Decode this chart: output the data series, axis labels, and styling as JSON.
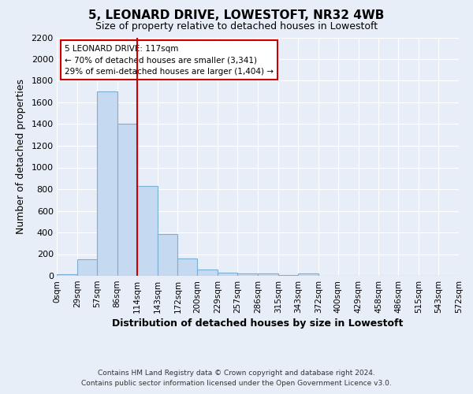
{
  "title": "5, LEONARD DRIVE, LOWESTOFT, NR32 4WB",
  "subtitle": "Size of property relative to detached houses in Lowestoft",
  "xlabel": "Distribution of detached houses by size in Lowestoft",
  "ylabel": "Number of detached properties",
  "bar_color": "#c5d9f0",
  "bar_edge_color": "#7bafd4",
  "background_color": "#e8eef8",
  "grid_color": "#ffffff",
  "bin_edges": [
    0,
    29,
    57,
    86,
    114,
    143,
    172,
    200,
    229,
    257,
    286,
    315,
    343,
    372,
    400,
    429,
    458,
    486,
    515,
    543,
    572
  ],
  "bin_labels": [
    "0sqm",
    "29sqm",
    "57sqm",
    "86sqm",
    "114sqm",
    "143sqm",
    "172sqm",
    "200sqm",
    "229sqm",
    "257sqm",
    "286sqm",
    "315sqm",
    "343sqm",
    "372sqm",
    "400sqm",
    "429sqm",
    "458sqm",
    "486sqm",
    "515sqm",
    "543sqm",
    "572sqm"
  ],
  "bar_heights": [
    15,
    155,
    1700,
    1400,
    830,
    385,
    160,
    60,
    30,
    20,
    25,
    5,
    20,
    0,
    0,
    0,
    0,
    0,
    0,
    0
  ],
  "vline_x": 114,
  "vline_color": "#cc0000",
  "annotation_text": "5 LEONARD DRIVE: 117sqm\n← 70% of detached houses are smaller (3,341)\n29% of semi-detached houses are larger (1,404) →",
  "annotation_box_color": "#ffffff",
  "annotation_box_edge_color": "#cc0000",
  "ylim": [
    0,
    2200
  ],
  "yticks": [
    0,
    200,
    400,
    600,
    800,
    1000,
    1200,
    1400,
    1600,
    1800,
    2000,
    2200
  ],
  "footer_line1": "Contains HM Land Registry data © Crown copyright and database right 2024.",
  "footer_line2": "Contains public sector information licensed under the Open Government Licence v3.0."
}
